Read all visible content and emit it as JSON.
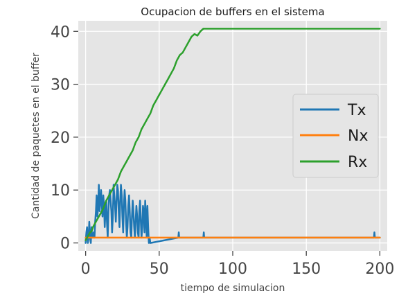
{
  "chart_data": {
    "type": "line",
    "title": "Ocupacion de buffers en el sistema",
    "xlabel": "tiempo de simulacion",
    "ylabel": "Cantidad de paquetes en el buffer",
    "xlim": [
      -5,
      205
    ],
    "ylim": [
      -1.5,
      42
    ],
    "xticks": [
      0,
      50,
      100,
      150,
      200
    ],
    "yticks": [
      0,
      10,
      20,
      30,
      40
    ],
    "grid": true,
    "background": "#e5e5e5",
    "legend_position": "center-right",
    "series": [
      {
        "name": "Tx",
        "color": "#1f77b4",
        "x": [
          0,
          0.5,
          1,
          1.5,
          2,
          2.5,
          3,
          3.5,
          4,
          4.5,
          5,
          5.5,
          6,
          6.5,
          7,
          7.5,
          8,
          8.5,
          9,
          9.5,
          10,
          10.5,
          11,
          11.5,
          12,
          12.5,
          13,
          13.5,
          14,
          14.5,
          15,
          15.5,
          16,
          16.5,
          17,
          17.5,
          18,
          18.5,
          19,
          19.5,
          20,
          20.5,
          21,
          21.5,
          22,
          22.5,
          23,
          23.5,
          24,
          24.5,
          25,
          25.5,
          26,
          26.5,
          27,
          27.5,
          28,
          28.5,
          29,
          29.5,
          30,
          30.5,
          31,
          31.5,
          32,
          32.5,
          33,
          33.5,
          34,
          34.5,
          35,
          35.5,
          36,
          36.5,
          37,
          37.5,
          38,
          38.5,
          39,
          39.5,
          40,
          40.5,
          41,
          41.5,
          42,
          42.5,
          43,
          43.5,
          44,
          63,
          63.3,
          63.6,
          64,
          80,
          80.3,
          80.6,
          81,
          196,
          196.3,
          196.6,
          197,
          200
        ],
        "y": [
          0,
          2,
          3,
          0,
          1,
          4,
          1,
          0,
          3,
          1,
          1,
          2,
          1,
          4,
          6,
          9,
          5,
          7,
          11,
          6,
          8,
          10,
          7,
          5,
          9,
          7,
          3,
          6,
          8,
          4,
          1,
          6,
          9,
          10,
          8,
          6,
          2,
          5,
          11,
          9,
          7,
          4,
          8,
          11,
          10,
          6,
          3,
          8,
          11,
          9,
          5,
          2,
          7,
          10,
          8,
          4,
          1,
          3,
          7,
          9,
          6,
          2,
          1,
          5,
          8,
          6,
          3,
          1,
          4,
          7,
          5,
          2,
          1,
          6,
          8,
          4,
          1,
          3,
          7,
          6,
          2,
          8,
          5,
          1,
          7,
          3,
          0,
          1,
          0,
          1,
          2,
          1,
          1,
          1,
          2,
          1,
          1,
          1,
          2,
          1,
          1,
          1
        ]
      },
      {
        "name": "Nx",
        "color": "#ff7f0e",
        "x": [
          0,
          200
        ],
        "y": [
          1,
          1
        ]
      },
      {
        "name": "Rx",
        "color": "#2ca02c",
        "x": [
          0,
          1,
          2,
          3,
          4,
          5,
          6,
          8,
          10,
          12,
          14,
          16,
          18,
          20,
          22,
          24,
          26,
          28,
          30,
          32,
          34,
          36,
          38,
          40,
          42,
          44,
          46,
          48,
          50,
          52,
          54,
          56,
          58,
          60,
          62,
          64,
          66,
          68,
          70,
          72,
          74,
          76,
          78,
          80,
          81,
          82,
          200
        ],
        "y": [
          0.5,
          1,
          1.5,
          2,
          2.2,
          3,
          3.5,
          4.5,
          5.5,
          6.5,
          8,
          9,
          10,
          11,
          12,
          13.5,
          14.5,
          15.5,
          16.5,
          17.5,
          19,
          20,
          21.5,
          22.5,
          23.5,
          24.5,
          26,
          27,
          28,
          29,
          30,
          31,
          32,
          33,
          34.5,
          35.5,
          36,
          37,
          38,
          39,
          39.5,
          39.2,
          40,
          40.5,
          40.5,
          40.5,
          40.5
        ]
      }
    ]
  }
}
